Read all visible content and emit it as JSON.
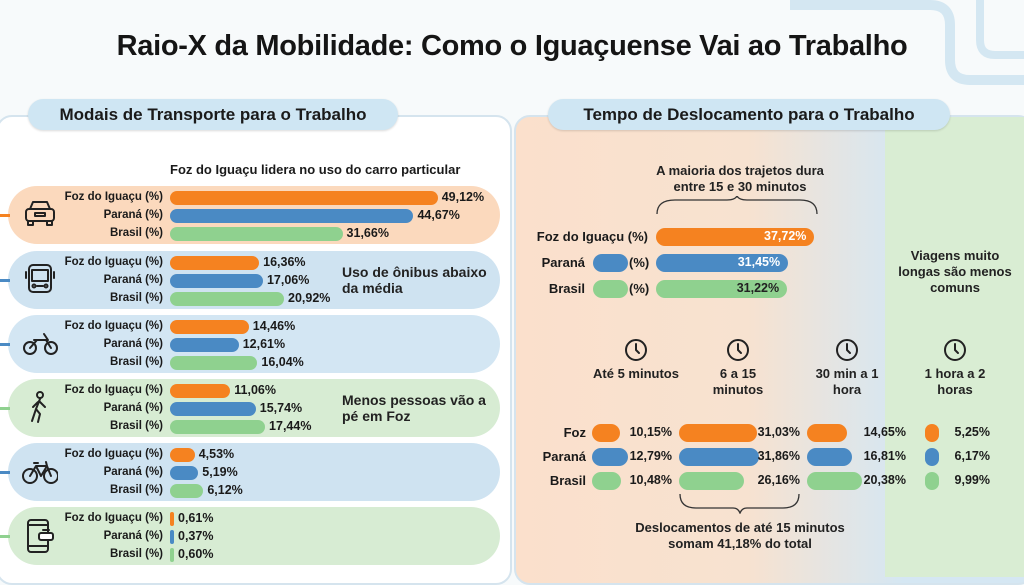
{
  "title": "Raio-X da Mobilidade: Como o Iguaçuense Vai ao Trabalho",
  "colors": {
    "foz": "#f58220",
    "parana": "#4a8ac4",
    "brasil": "#8fd18f"
  },
  "chart_data": [
    {
      "type": "bar",
      "orientation": "horizontal",
      "header": "Modais de Transporte para o Trabalho",
      "subtitle": "Foz do Iguaçu lidera no uso do carro particular",
      "series_labels": [
        "Foz do Iguaçu (%)",
        "Paraná (%)",
        "Brasil (%)"
      ],
      "groups": [
        {
          "icon": "car-icon",
          "values": [
            49.12,
            44.67,
            31.66
          ],
          "value_labels": [
            "49,12%",
            "44,67%",
            "31,66%"
          ],
          "note": ""
        },
        {
          "icon": "bus-icon",
          "values": [
            16.36,
            17.06,
            20.92
          ],
          "value_labels": [
            "16,36%",
            "17,06%",
            "20,92%"
          ],
          "note": "Uso de ônibus abaixo da média"
        },
        {
          "icon": "motorcycle-icon",
          "values": [
            14.46,
            12.61,
            16.04
          ],
          "value_labels": [
            "14,46%",
            "12,61%",
            "16,04%"
          ],
          "note": ""
        },
        {
          "icon": "pedestrian-icon",
          "values": [
            11.06,
            15.74,
            17.44
          ],
          "value_labels": [
            "11,06%",
            "15,74%",
            "17,44%"
          ],
          "note": "Menos pessoas vão a pé em Foz"
        },
        {
          "icon": "bicycle-icon",
          "values": [
            4.53,
            5.19,
            6.12
          ],
          "value_labels": [
            "4,53%",
            "5,19%",
            "6,12%"
          ],
          "note": ""
        },
        {
          "icon": "ride-app-phone-icon",
          "values": [
            0.61,
            0.37,
            0.6
          ],
          "value_labels": [
            "0,61%",
            "0,37%",
            "0,60%"
          ],
          "note": ""
        }
      ]
    },
    {
      "type": "bar",
      "orientation": "horizontal",
      "header": "Tempo de Deslocamento para o Trabalho",
      "subtitle": "A maioria dos trajetos dura entre 15 e 30 minutos",
      "rows": [
        {
          "name": "Foz do Iguaçu",
          "unit": "(%)",
          "value": 37.72,
          "value_label": "37,72%"
        },
        {
          "name": "Paraná",
          "unit": "(%)",
          "value": 31.45,
          "value_label": "31,45%"
        },
        {
          "name": "Brasil",
          "unit": "(%)",
          "value": 31.22,
          "value_label": "31,22%"
        }
      ]
    },
    {
      "type": "bar",
      "orientation": "horizontal",
      "categories": [
        "Até 5 minutos",
        "6 a 15 minutos",
        "30 min a 1 hora",
        "1 hora a 2 horas"
      ],
      "category_icon": "clock-icon",
      "series": [
        {
          "name": "Foz",
          "values": [
            10.15,
            31.03,
            14.65,
            5.25
          ],
          "value_labels": [
            "10,15%",
            "31,03%",
            "14,65%",
            "5,25%"
          ]
        },
        {
          "name": "Paraná",
          "values": [
            12.79,
            31.86,
            16.81,
            6.17
          ],
          "value_labels": [
            "12,79%",
            "31,86%",
            "16,81%",
            "6,17%"
          ]
        },
        {
          "name": "Brasil",
          "values": [
            10.48,
            26.16,
            20.38,
            9.99
          ],
          "value_labels": [
            "10,48%",
            "26,16%",
            "20,38%",
            "9,99%"
          ]
        }
      ],
      "note_long": "Viagens muito longas são menos comuns",
      "note_short": "Deslocamentos de até 15 minutos somam 41,18% do total"
    }
  ]
}
